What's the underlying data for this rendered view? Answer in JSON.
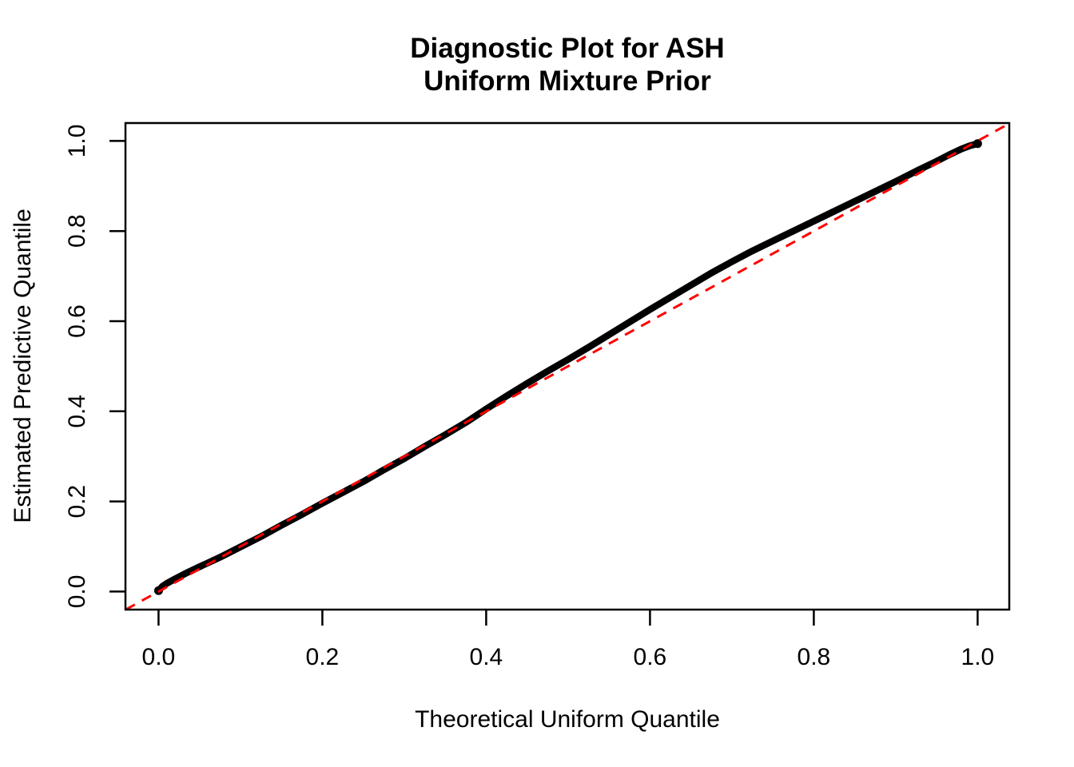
{
  "figure": {
    "background_color": "#ffffff",
    "text_color": "#000000"
  },
  "title": {
    "line1": "Diagnostic Plot for ASH",
    "line2": "Uniform Mixture Prior"
  },
  "chart_data": {
    "type": "scatter",
    "title": "Diagnostic Plot for ASH Uniform Mixture Prior",
    "xlabel": "Theoretical Uniform Quantile",
    "ylabel": "Estimated Predictive Quantile",
    "xlim": [
      -0.04,
      1.04
    ],
    "ylim": [
      -0.04,
      1.04
    ],
    "grid": false,
    "legend": "none",
    "x_ticks": {
      "values": [
        0.0,
        0.2,
        0.4,
        0.6,
        0.8,
        1.0
      ],
      "labels": [
        "0.0",
        "0.2",
        "0.4",
        "0.6",
        "0.8",
        "1.0"
      ]
    },
    "y_ticks": {
      "values": [
        0.0,
        0.2,
        0.4,
        0.6,
        0.8,
        1.0
      ],
      "labels": [
        "0.0",
        "0.2",
        "0.4",
        "0.6",
        "0.8",
        "1.0"
      ]
    },
    "reference_line": {
      "slope": 1,
      "intercept": 0,
      "color": "#ff0000",
      "style": "dashed",
      "meaning": "y = x identity line"
    },
    "series": [
      {
        "name": "Estimated predictive quantile vs theoretical uniform quantile",
        "color": "#000000",
        "style": "dense-points-curve",
        "points": [
          [
            0.0,
            0.002
          ],
          [
            0.005,
            0.012
          ],
          [
            0.01,
            0.018
          ],
          [
            0.02,
            0.028
          ],
          [
            0.035,
            0.042
          ],
          [
            0.05,
            0.055
          ],
          [
            0.075,
            0.076
          ],
          [
            0.1,
            0.099
          ],
          [
            0.125,
            0.122
          ],
          [
            0.15,
            0.147
          ],
          [
            0.175,
            0.171
          ],
          [
            0.2,
            0.196
          ],
          [
            0.225,
            0.22
          ],
          [
            0.25,
            0.244
          ],
          [
            0.275,
            0.27
          ],
          [
            0.3,
            0.295
          ],
          [
            0.325,
            0.322
          ],
          [
            0.35,
            0.348
          ],
          [
            0.375,
            0.375
          ],
          [
            0.4,
            0.405
          ],
          [
            0.425,
            0.434
          ],
          [
            0.45,
            0.462
          ],
          [
            0.475,
            0.489
          ],
          [
            0.5,
            0.515
          ],
          [
            0.525,
            0.542
          ],
          [
            0.55,
            0.57
          ],
          [
            0.575,
            0.598
          ],
          [
            0.6,
            0.626
          ],
          [
            0.625,
            0.653
          ],
          [
            0.65,
            0.68
          ],
          [
            0.675,
            0.707
          ],
          [
            0.7,
            0.732
          ],
          [
            0.725,
            0.756
          ],
          [
            0.75,
            0.778
          ],
          [
            0.775,
            0.8
          ],
          [
            0.8,
            0.822
          ],
          [
            0.825,
            0.844
          ],
          [
            0.85,
            0.866
          ],
          [
            0.875,
            0.888
          ],
          [
            0.9,
            0.91
          ],
          [
            0.925,
            0.933
          ],
          [
            0.95,
            0.955
          ],
          [
            0.965,
            0.969
          ],
          [
            0.98,
            0.982
          ],
          [
            0.99,
            0.989
          ],
          [
            1.0,
            0.994
          ]
        ]
      }
    ]
  }
}
